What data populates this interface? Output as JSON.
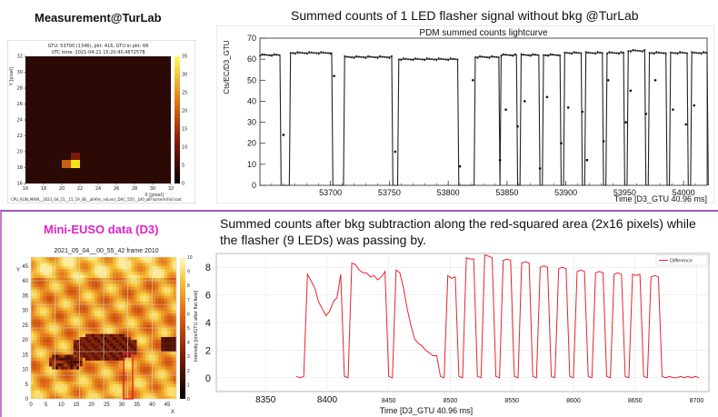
{
  "top": {
    "left_title": "Measurement@TurLab",
    "right_title": "Summed counts of 1 LED flasher signal without bkg @TurLab",
    "heatmap": {
      "header1": "GTU: 53700 (1346), pkt: 416, GTU in pkt: 66",
      "header2": "UTC time: 2021-04-21 15:20:40.4872578",
      "ylabel": "Y [pixel]",
      "xlabel": "X [pixel]",
      "footer": "CPU_RUN_MAIN__2021_04_21__15_19_48__allHVs_noLens_DAC_550__LV0_allFlasherInFoV.root",
      "xticks": [
        "16",
        "18",
        "20",
        "22",
        "24",
        "26",
        "28",
        "30",
        "32"
      ],
      "yticks": [
        "16",
        "18",
        "20",
        "22",
        "24",
        "26",
        "28",
        "30",
        "32"
      ],
      "cbar_ticks": [
        "0",
        "5",
        "10",
        "15",
        "20",
        "25",
        "30",
        "35"
      ],
      "colors": {
        "bg": "#2b0a05",
        "hot": "#f5e21a",
        "mid": "#f0a020",
        "warm": "#c86014"
      }
    }
  },
  "bottom": {
    "left_title": "Mini-EUSO data (D3)",
    "right_title": "Summed counts after bkg subtraction along the red-squared area (2x16 pixels) while the flasher (9 LEDs) was passing by.",
    "map": {
      "title": "2021_05_04__00_55_42 frame 2010",
      "ylabel": "Y",
      "xlabel": "X",
      "xticks": [
        "0",
        "5",
        "10",
        "15",
        "20",
        "25",
        "30",
        "35",
        "40",
        "45"
      ],
      "yticks": [
        "0",
        "5",
        "10",
        "15",
        "20",
        "25",
        "30",
        "35",
        "40",
        "45"
      ],
      "cbar_ticks": [
        "0",
        "1",
        "2",
        "3",
        "4",
        "5",
        "6",
        "7",
        "8",
        "9",
        "10"
      ],
      "cbar_label": "Intensity [cts/GTU after flat field]"
    }
  },
  "chart_data": [
    {
      "type": "scatter",
      "title": "PDM summed counts lightcurve",
      "xlabel": "Time [D3_GTU 40.96 ms]",
      "ylabel": "Cts/EC/D3_GTU",
      "xlim": [
        53640,
        54020
      ],
      "ylim": [
        0,
        70
      ],
      "xticks": [
        53700,
        53750,
        53800,
        53850,
        53900,
        53950,
        54000
      ],
      "yticks": [
        0,
        10,
        20,
        30,
        40,
        50,
        60,
        70
      ],
      "on_intervals": [
        [
          53640,
          53657,
          62
        ],
        [
          53666,
          53701,
          63
        ],
        [
          53712,
          53752,
          61
        ],
        [
          53758,
          53808,
          60
        ],
        [
          53823,
          53843,
          61
        ],
        [
          53845,
          53858,
          62
        ],
        [
          53862,
          53877,
          62
        ],
        [
          53881,
          53895,
          62
        ],
        [
          53899,
          53913,
          63
        ],
        [
          53917,
          53931,
          63
        ],
        [
          53935,
          53949,
          63
        ],
        [
          53953,
          53967,
          64
        ],
        [
          53971,
          53985,
          63
        ],
        [
          53989,
          54003,
          63
        ],
        [
          54007,
          54020,
          63
        ]
      ],
      "transition_points": [
        [
          53660,
          24
        ],
        [
          53703,
          52
        ],
        [
          53755,
          16
        ],
        [
          53810,
          9
        ],
        [
          53821,
          50
        ],
        [
          53844,
          12
        ],
        [
          53849,
          36
        ],
        [
          53859,
          28
        ],
        [
          53865,
          40
        ],
        [
          53878,
          8
        ],
        [
          53884,
          42
        ],
        [
          53896,
          20
        ],
        [
          53902,
          37
        ],
        [
          53914,
          35
        ],
        [
          53918,
          12
        ],
        [
          53932,
          21
        ],
        [
          53936,
          50
        ],
        [
          53951,
          30
        ],
        [
          53955,
          45
        ],
        [
          53968,
          34
        ],
        [
          53976,
          50
        ],
        [
          53991,
          36
        ],
        [
          54002,
          29
        ],
        [
          54009,
          38
        ]
      ]
    },
    {
      "type": "line",
      "title": "",
      "xlabel": "Time [D3_GTU 40.96 ms]",
      "ylabel": "",
      "legend": "Difference",
      "legend_position": "top-right",
      "series_color": "#e8242b",
      "xlim": [
        8310,
        8710
      ],
      "ylim": [
        -1,
        9
      ],
      "xticks": [
        8350,
        8400,
        8450,
        8500,
        8550,
        8600,
        8650,
        8700
      ],
      "yticks": [
        0,
        2,
        4,
        6,
        8
      ],
      "x": [
        8375,
        8378,
        8381,
        8384,
        8387,
        8390,
        8393,
        8396,
        8399,
        8402,
        8405,
        8408,
        8411,
        8414,
        8417,
        8420,
        8423,
        8426,
        8429,
        8432,
        8435,
        8438,
        8441,
        8444,
        8447,
        8450,
        8453,
        8456,
        8459,
        8462,
        8465,
        8468,
        8471,
        8474,
        8477,
        8480,
        8483,
        8486,
        8489,
        8492,
        8495,
        8498,
        8501,
        8504,
        8507,
        8510,
        8513,
        8516,
        8519,
        8522,
        8525,
        8528,
        8531,
        8534,
        8537,
        8540,
        8543,
        8546,
        8549,
        8552,
        8555,
        8558,
        8561,
        8564,
        8567,
        8570,
        8573,
        8576,
        8579,
        8582,
        8585,
        8588,
        8591,
        8594,
        8597,
        8600,
        8603,
        8606,
        8609,
        8612,
        8615,
        8618,
        8621,
        8624,
        8627,
        8630,
        8633,
        8636,
        8639,
        8642,
        8645,
        8648,
        8651,
        8654,
        8657,
        8660,
        8663,
        8666,
        8669,
        8672,
        8675,
        8678,
        8681,
        8684,
        8687,
        8690,
        8693,
        8696,
        8699,
        8702
      ],
      "y": [
        0.1,
        0.0,
        0.1,
        7.5,
        7.0,
        6.5,
        5.5,
        5.0,
        4.5,
        4.8,
        5.5,
        5.8,
        7.5,
        0.1,
        0.0,
        8.3,
        8.2,
        7.8,
        7.6,
        7.6,
        7.3,
        7.4,
        7.1,
        7.3,
        7.7,
        0.1,
        0.0,
        7.8,
        7.6,
        6.5,
        5.0,
        3.8,
        2.8,
        2.5,
        2.3,
        2.0,
        1.8,
        1.6,
        1.6,
        0.1,
        0.0,
        7.4,
        7.2,
        7.3,
        0.1,
        0.0,
        8.7,
        8.6,
        8.6,
        0.1,
        0.0,
        8.9,
        8.8,
        8.7,
        0.1,
        0.0,
        8.5,
        8.6,
        8.5,
        0.1,
        0.0,
        8.3,
        8.4,
        8.3,
        0.1,
        0.0,
        8.0,
        8.1,
        8.0,
        0.1,
        0.0,
        7.9,
        8.0,
        7.9,
        0.1,
        0.0,
        7.7,
        7.8,
        7.7,
        0.1,
        0.0,
        7.6,
        7.7,
        7.6,
        0.1,
        0.0,
        7.5,
        7.6,
        7.5,
        0.1,
        0.0,
        7.5,
        7.4,
        7.5,
        0.1,
        0.0,
        7.3,
        7.4,
        7.3,
        0.1,
        0.0,
        0.1,
        0.0,
        0.0,
        0.1,
        0.0,
        0.1,
        0.0,
        0.1,
        0.0
      ]
    }
  ]
}
